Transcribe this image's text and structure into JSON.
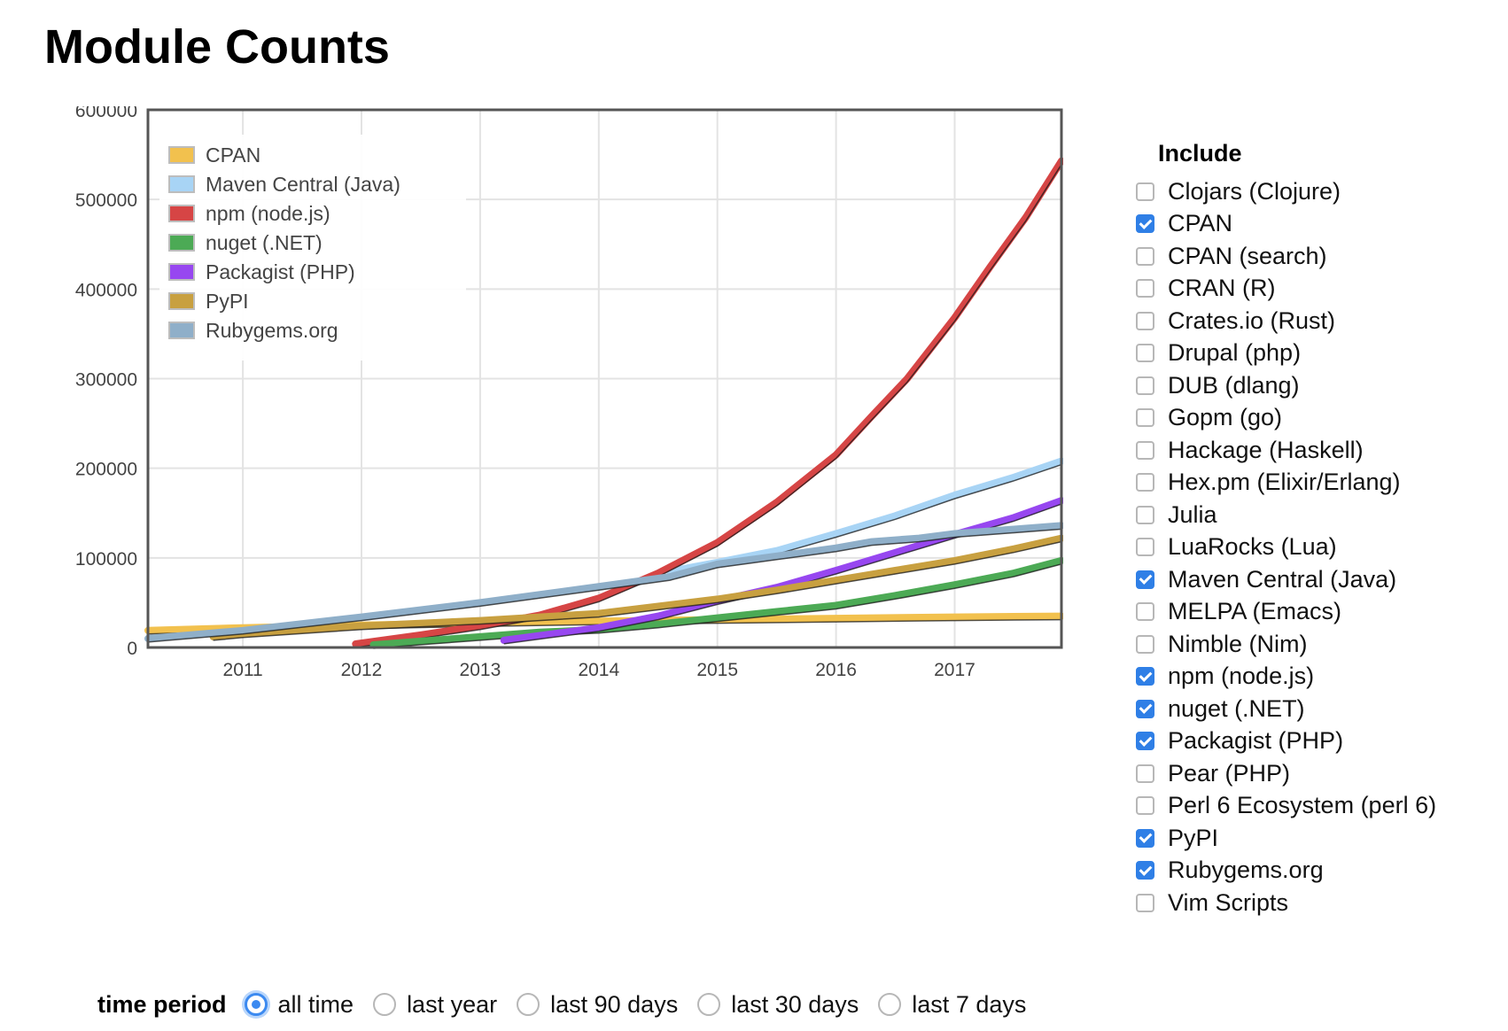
{
  "page": {
    "title": "Module Counts"
  },
  "include": {
    "title": "Include",
    "items": [
      {
        "label": "Clojars (Clojure)",
        "checked": false
      },
      {
        "label": "CPAN",
        "checked": true
      },
      {
        "label": "CPAN (search)",
        "checked": false
      },
      {
        "label": "CRAN (R)",
        "checked": false
      },
      {
        "label": "Crates.io (Rust)",
        "checked": false
      },
      {
        "label": "Drupal (php)",
        "checked": false
      },
      {
        "label": "DUB (dlang)",
        "checked": false
      },
      {
        "label": "Gopm (go)",
        "checked": false
      },
      {
        "label": "Hackage (Haskell)",
        "checked": false
      },
      {
        "label": "Hex.pm (Elixir/Erlang)",
        "checked": false
      },
      {
        "label": "Julia",
        "checked": false
      },
      {
        "label": "LuaRocks (Lua)",
        "checked": false
      },
      {
        "label": "Maven Central (Java)",
        "checked": true
      },
      {
        "label": "MELPA (Emacs)",
        "checked": false
      },
      {
        "label": "Nimble (Nim)",
        "checked": false
      },
      {
        "label": "npm (node.js)",
        "checked": true
      },
      {
        "label": "nuget (.NET)",
        "checked": true
      },
      {
        "label": "Packagist (PHP)",
        "checked": true
      },
      {
        "label": "Pear (PHP)",
        "checked": false
      },
      {
        "label": "Perl 6 Ecosystem (perl 6)",
        "checked": false
      },
      {
        "label": "PyPI",
        "checked": true
      },
      {
        "label": "Rubygems.org",
        "checked": true
      },
      {
        "label": "Vim Scripts",
        "checked": false
      }
    ]
  },
  "time_period": {
    "title": "time period",
    "options": [
      {
        "label": "all time",
        "selected": true
      },
      {
        "label": "last year",
        "selected": false
      },
      {
        "label": "last 90 days",
        "selected": false
      },
      {
        "label": "last 30 days",
        "selected": false
      },
      {
        "label": "last 7 days",
        "selected": false
      }
    ]
  },
  "chart_data": {
    "type": "line",
    "title": "",
    "xlabel": "",
    "ylabel": "",
    "xlim": [
      2010.2,
      2017.9
    ],
    "ylim": [
      0,
      600000
    ],
    "x_ticks": [
      "2011",
      "2012",
      "2013",
      "2014",
      "2015",
      "2016",
      "2017"
    ],
    "y_ticks": [
      "0",
      "100000",
      "200000",
      "300000",
      "400000",
      "500000",
      "600000"
    ],
    "grid": true,
    "legend_position": "top-left",
    "series": [
      {
        "name": "CPAN",
        "color": "#f2c14e",
        "points": [
          [
            2010.2,
            19000
          ],
          [
            2011.0,
            22000
          ],
          [
            2012.0,
            25000
          ],
          [
            2013.0,
            27500
          ],
          [
            2014.0,
            29500
          ],
          [
            2015.0,
            31000
          ],
          [
            2016.0,
            32500
          ],
          [
            2017.0,
            34000
          ],
          [
            2017.9,
            35000
          ]
        ]
      },
      {
        "name": "Maven Central (Java)",
        "color": "#a8d4f5",
        "points": [
          [
            2014.6,
            85000
          ],
          [
            2015.0,
            95000
          ],
          [
            2015.5,
            108000
          ],
          [
            2016.0,
            127000
          ],
          [
            2016.5,
            147000
          ],
          [
            2017.0,
            170000
          ],
          [
            2017.5,
            190000
          ],
          [
            2017.9,
            208000
          ]
        ]
      },
      {
        "name": "npm (node.js)",
        "color": "#d64545",
        "points": [
          [
            2011.95,
            4000
          ],
          [
            2012.5,
            14000
          ],
          [
            2013.0,
            24000
          ],
          [
            2013.5,
            36000
          ],
          [
            2014.0,
            55000
          ],
          [
            2014.5,
            83000
          ],
          [
            2015.0,
            117000
          ],
          [
            2015.5,
            162000
          ],
          [
            2016.0,
            215000
          ],
          [
            2016.3,
            258000
          ],
          [
            2016.6,
            300000
          ],
          [
            2017.0,
            368000
          ],
          [
            2017.3,
            425000
          ],
          [
            2017.6,
            480000
          ],
          [
            2017.9,
            543000
          ]
        ]
      },
      {
        "name": "nuget (.NET)",
        "color": "#4caa55",
        "points": [
          [
            2012.1,
            3000
          ],
          [
            2012.5,
            7000
          ],
          [
            2013.0,
            12000
          ],
          [
            2013.5,
            17000
          ],
          [
            2014.0,
            20000
          ],
          [
            2014.5,
            26000
          ],
          [
            2015.0,
            33000
          ],
          [
            2015.5,
            40000
          ],
          [
            2016.0,
            47000
          ],
          [
            2016.5,
            58000
          ],
          [
            2017.0,
            70000
          ],
          [
            2017.5,
            83000
          ],
          [
            2017.9,
            97000
          ]
        ]
      },
      {
        "name": "Packagist (PHP)",
        "color": "#9747f0",
        "points": [
          [
            2013.2,
            8000
          ],
          [
            2013.6,
            15000
          ],
          [
            2014.0,
            22000
          ],
          [
            2014.5,
            35000
          ],
          [
            2015.0,
            52000
          ],
          [
            2015.5,
            67000
          ],
          [
            2016.0,
            86000
          ],
          [
            2016.5,
            106000
          ],
          [
            2017.0,
            126000
          ],
          [
            2017.5,
            145000
          ],
          [
            2017.9,
            164000
          ]
        ]
      },
      {
        "name": "PyPI",
        "color": "#c8a040",
        "points": [
          [
            2010.75,
            12000
          ],
          [
            2011.0,
            15000
          ],
          [
            2012.0,
            24000
          ],
          [
            2013.0,
            30000
          ],
          [
            2014.0,
            38000
          ],
          [
            2015.0,
            54000
          ],
          [
            2015.5,
            64000
          ],
          [
            2016.0,
            75000
          ],
          [
            2016.5,
            86000
          ],
          [
            2017.0,
            97000
          ],
          [
            2017.5,
            110000
          ],
          [
            2017.9,
            122000
          ]
        ]
      },
      {
        "name": "Rubygems.org",
        "color": "#8fafc9",
        "points": [
          [
            2010.2,
            10000
          ],
          [
            2011.0,
            19000
          ],
          [
            2012.0,
            34000
          ],
          [
            2013.0,
            50000
          ],
          [
            2014.0,
            68000
          ],
          [
            2014.6,
            79000
          ],
          [
            2015.0,
            93000
          ],
          [
            2015.5,
            102000
          ],
          [
            2016.0,
            111000
          ],
          [
            2016.3,
            118000
          ],
          [
            2016.7,
            122000
          ],
          [
            2017.0,
            127000
          ],
          [
            2017.5,
            132000
          ],
          [
            2017.9,
            136000
          ]
        ]
      }
    ]
  }
}
